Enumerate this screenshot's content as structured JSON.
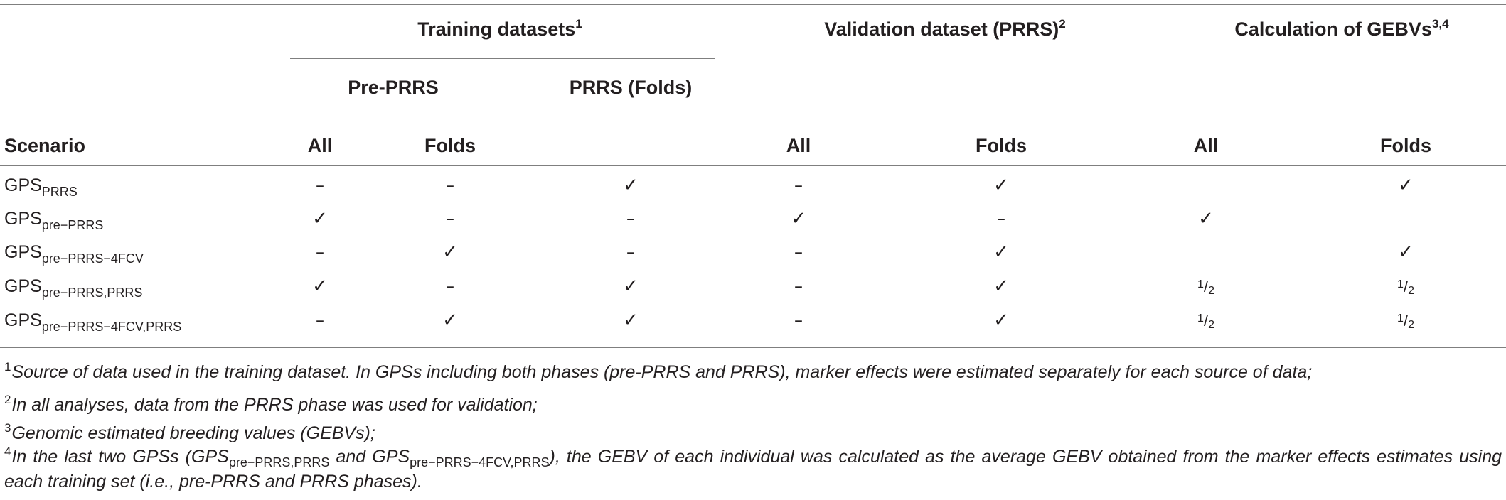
{
  "header": {
    "training": "Training datasets",
    "training_sup": "1",
    "validation": "Validation dataset (PRRS)",
    "validation_sup": "2",
    "calc": "Calculation of GEBVs",
    "calc_sup": "3,4",
    "pre_prrs": "Pre-PRRS",
    "prrs_folds": "PRRS (Folds)",
    "scenario": "Scenario",
    "all": "All",
    "folds": "Folds"
  },
  "symbols": {
    "check": "✓",
    "dash": "–",
    "half_num": "1",
    "half_slash": "/",
    "half_den": "2"
  },
  "rows": [
    {
      "base": "GPS",
      "sub": "PRRS",
      "cells": [
        "dash",
        "dash",
        "check",
        "dash",
        "check",
        "",
        "check"
      ]
    },
    {
      "base": "GPS",
      "sub": "pre−PRRS",
      "cells": [
        "check",
        "dash",
        "dash",
        "check",
        "dash",
        "check",
        ""
      ]
    },
    {
      "base": "GPS",
      "sub": "pre−PRRS−4FCV",
      "cells": [
        "dash",
        "check",
        "dash",
        "dash",
        "check",
        "",
        "check"
      ]
    },
    {
      "base": "GPS",
      "sub": "pre−PRRS,PRRS",
      "cells": [
        "check",
        "dash",
        "check",
        "dash",
        "check",
        "half",
        "half"
      ]
    },
    {
      "base": "GPS",
      "sub": "pre−PRRS−4FCV,PRRS",
      "cells": [
        "dash",
        "check",
        "check",
        "dash",
        "check",
        "half",
        "half"
      ]
    }
  ],
  "footnotes": {
    "f1_num": "1",
    "f1": "Source of data used in the training dataset. In GPSs including both phases (pre-PRRS and PRRS), marker effects were estimated separately for each source of data;",
    "f2_num": "2",
    "f2": "In all analyses, data from the PRRS phase was used for validation;",
    "f3_num": "3",
    "f3": "Genomic estimated breeding values (GEBVs);",
    "f4_num": "4",
    "f4_a": "In the last two GPSs (",
    "f4_gps1": "GPS",
    "f4_sub1": "pre−PRRS,PRRS",
    "f4_and": " and ",
    "f4_gps2": "GPS",
    "f4_sub2": "pre−PRRS−4FCV,PRRS",
    "f4_b": "), the GEBV of each individual was calculated as the average GEBV obtained from the marker effects estimates using each training set (i.e., pre-PRRS and PRRS phases)."
  }
}
